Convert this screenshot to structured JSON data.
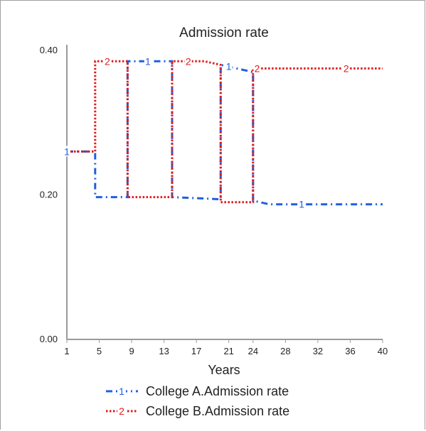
{
  "chart_data": {
    "type": "line",
    "title": "Admission rate",
    "xlabel": "Years",
    "ylabel": "",
    "xlim": [
      1,
      40
    ],
    "ylim": [
      0,
      0.4
    ],
    "x_ticks": [
      "1",
      "5",
      "9",
      "13",
      "17",
      "21",
      "24",
      "28",
      "32",
      "36",
      "40"
    ],
    "y_ticks": [
      "0.00",
      "0.20",
      "0.40"
    ],
    "series": [
      {
        "name": "College A.Admission rate",
        "marker": "1",
        "color": "#1f5fe0",
        "dash": "dashdot",
        "points": [
          [
            1,
            0.26
          ],
          [
            4.5,
            0.26
          ],
          [
            4.5,
            0.197
          ],
          [
            8.5,
            0.197
          ],
          [
            8.5,
            0.385
          ],
          [
            14,
            0.385
          ],
          [
            14,
            0.197
          ],
          [
            20,
            0.194
          ],
          [
            20,
            0.38
          ],
          [
            24,
            0.37
          ],
          [
            24,
            0.192
          ],
          [
            26,
            0.187
          ],
          [
            40,
            0.187
          ]
        ]
      },
      {
        "name": "College B.Admission rate",
        "marker": "2",
        "color": "#e01b1b",
        "dash": "dotted",
        "points": [
          [
            1,
            0.26
          ],
          [
            4.5,
            0.26
          ],
          [
            4.5,
            0.385
          ],
          [
            8.5,
            0.385
          ],
          [
            8.5,
            0.197
          ],
          [
            14,
            0.197
          ],
          [
            14,
            0.385
          ],
          [
            18,
            0.385
          ],
          [
            20,
            0.38
          ],
          [
            20,
            0.19
          ],
          [
            24,
            0.19
          ],
          [
            24,
            0.375
          ],
          [
            40,
            0.375
          ]
        ]
      }
    ],
    "markers": [
      {
        "series": 0,
        "x": 1,
        "y": 0.26
      },
      {
        "series": 0,
        "x": 11,
        "y": 0.385
      },
      {
        "series": 0,
        "x": 21,
        "y": 0.378
      },
      {
        "series": 0,
        "x": 30,
        "y": 0.187
      },
      {
        "series": 1,
        "x": 6,
        "y": 0.385
      },
      {
        "series": 1,
        "x": 16,
        "y": 0.385
      },
      {
        "series": 1,
        "x": 24.5,
        "y": 0.375
      },
      {
        "series": 1,
        "x": 35.5,
        "y": 0.375
      }
    ],
    "grid": false,
    "legend_position": "bottom"
  }
}
